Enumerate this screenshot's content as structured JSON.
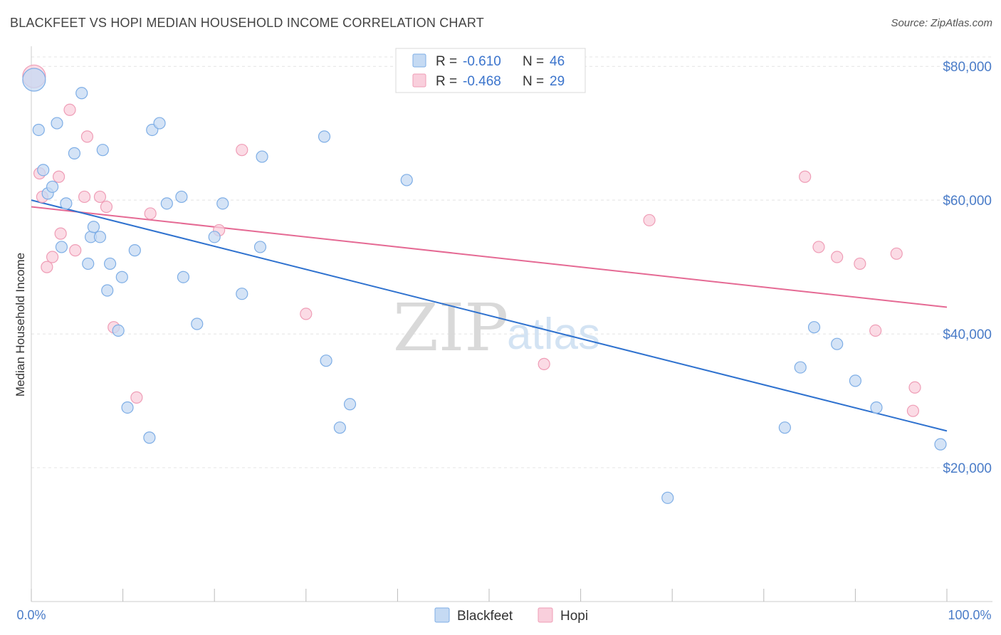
{
  "title": "BLACKFEET VS HOPI MEDIAN HOUSEHOLD INCOME CORRELATION CHART",
  "source": "Source: ZipAtlas.com",
  "watermark": {
    "zip": "ZIP",
    "atlas": "atlas"
  },
  "colors": {
    "blackfeet_fill": "#c5daf3",
    "blackfeet_stroke": "#7eaee6",
    "blackfeet_line": "#2f72cf",
    "hopi_fill": "#f9cfdc",
    "hopi_stroke": "#ef9db6",
    "hopi_line": "#e56a94",
    "grid": "#e4e4e4",
    "axis_text": "#4a7cc8"
  },
  "legend": {
    "rows": [
      {
        "r_label": "R =",
        "r_value": "-0.610",
        "n_label": "N =",
        "n_value": "46"
      },
      {
        "r_label": "R =",
        "r_value": "-0.468",
        "n_label": "N =",
        "n_value": "29"
      }
    ]
  },
  "bottom_legend": [
    "Blackfeet",
    "Hopi"
  ],
  "chart_data": {
    "type": "scatter",
    "title": "BLACKFEET VS HOPI MEDIAN HOUSEHOLD INCOME CORRELATION CHART",
    "xlabel": "",
    "ylabel": "Median Household Income",
    "xlim": [
      0,
      100
    ],
    "ylim": [
      0,
      83000
    ],
    "x_tick_labels": [
      "0.0%",
      "100.0%"
    ],
    "y_ticks": [
      20000,
      40000,
      60000,
      80000
    ],
    "y_tick_labels": [
      "$20,000",
      "$40,000",
      "$60,000",
      "$80,000"
    ],
    "series": [
      {
        "name": "Blackfeet",
        "points": [
          [
            0.3,
            78000
          ],
          [
            0.8,
            70500
          ],
          [
            1.3,
            64500
          ],
          [
            1.8,
            61000
          ],
          [
            2.3,
            62000
          ],
          [
            2.8,
            71500
          ],
          [
            3.3,
            53000
          ],
          [
            3.8,
            59500
          ],
          [
            4.7,
            67000
          ],
          [
            5.5,
            76000
          ],
          [
            6.2,
            50500
          ],
          [
            6.5,
            54500
          ],
          [
            6.8,
            56000
          ],
          [
            7.5,
            54500
          ],
          [
            7.8,
            67500
          ],
          [
            8.3,
            46500
          ],
          [
            8.6,
            50500
          ],
          [
            9.5,
            40500
          ],
          [
            9.9,
            48500
          ],
          [
            10.5,
            29000
          ],
          [
            11.3,
            52500
          ],
          [
            12.9,
            24500
          ],
          [
            13.2,
            70500
          ],
          [
            14.0,
            71500
          ],
          [
            14.8,
            59500
          ],
          [
            16.4,
            60500
          ],
          [
            16.6,
            48500
          ],
          [
            18.1,
            41500
          ],
          [
            20.0,
            54500
          ],
          [
            20.9,
            59500
          ],
          [
            23.0,
            46000
          ],
          [
            25.0,
            53000
          ],
          [
            25.2,
            66500
          ],
          [
            32.0,
            69500
          ],
          [
            32.2,
            36000
          ],
          [
            33.7,
            26000
          ],
          [
            34.8,
            29500
          ],
          [
            41.0,
            63000
          ],
          [
            69.5,
            15500
          ],
          [
            82.3,
            26000
          ],
          [
            84.0,
            35000
          ],
          [
            85.5,
            41000
          ],
          [
            88.0,
            38500
          ],
          [
            90.0,
            33000
          ],
          [
            92.3,
            29000
          ],
          [
            99.3,
            23500
          ]
        ],
        "trend": [
          [
            0,
            60000
          ],
          [
            100,
            25500
          ]
        ]
      },
      {
        "name": "Hopi",
        "points": [
          [
            0.3,
            78500
          ],
          [
            0.9,
            64000
          ],
          [
            1.2,
            60500
          ],
          [
            1.7,
            50000
          ],
          [
            2.3,
            51500
          ],
          [
            3.0,
            63500
          ],
          [
            3.2,
            55000
          ],
          [
            4.2,
            73500
          ],
          [
            4.8,
            52500
          ],
          [
            5.8,
            60500
          ],
          [
            6.1,
            69500
          ],
          [
            7.5,
            60500
          ],
          [
            8.2,
            59000
          ],
          [
            9.0,
            41000
          ],
          [
            11.5,
            30500
          ],
          [
            13.0,
            58000
          ],
          [
            20.5,
            55500
          ],
          [
            23.0,
            67500
          ],
          [
            30.0,
            43000
          ],
          [
            56.0,
            35500
          ],
          [
            67.5,
            57000
          ],
          [
            84.5,
            63500
          ],
          [
            86.0,
            53000
          ],
          [
            88.0,
            51500
          ],
          [
            90.5,
            50500
          ],
          [
            92.2,
            40500
          ],
          [
            94.5,
            52000
          ],
          [
            96.3,
            28500
          ],
          [
            96.5,
            32000
          ]
        ],
        "trend": [
          [
            0,
            59000
          ],
          [
            100,
            44000
          ]
        ]
      }
    ],
    "grid": true,
    "legend_position": "top-center"
  }
}
